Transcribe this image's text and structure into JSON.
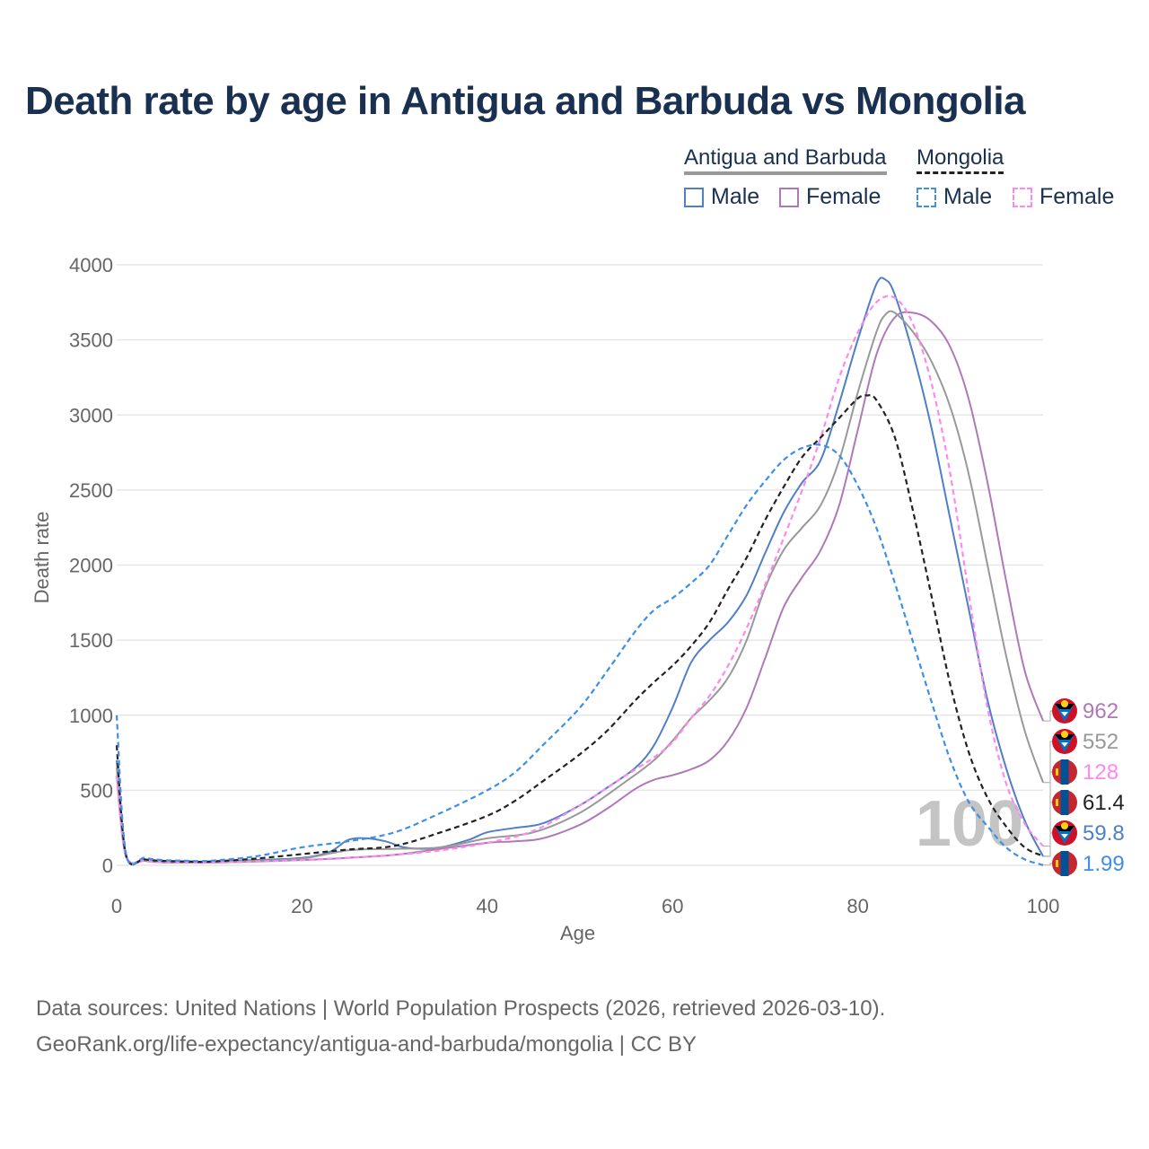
{
  "title": "Death rate by age in Antigua and Barbuda vs Mongolia",
  "legend": {
    "groups": [
      {
        "name": "Antigua and Barbuda",
        "line_style": "solid",
        "color": "#999999"
      },
      {
        "name": "Mongolia",
        "line_style": "dashed",
        "color": "#222222"
      }
    ],
    "items": [
      {
        "label": "Male",
        "color": "#4f7fc7",
        "style": "solid"
      },
      {
        "label": "Female",
        "color": "#b078b8",
        "style": "solid"
      },
      {
        "label": "Male",
        "color": "#3d8fe8",
        "style": "dashed"
      },
      {
        "label": "Female",
        "color": "#ff88ee",
        "style": "dashed"
      }
    ]
  },
  "watermark": "100",
  "footer": {
    "line1": "Data sources: United Nations | World Population Prospects (2026, retrieved 2026-03-10).",
    "line2": "GeoRank.org/life-expectancy/antigua-and-barbuda/mongolia | CC BY"
  },
  "chart_data": {
    "type": "line",
    "xlabel": "Age",
    "ylabel": "Death rate",
    "xlim": [
      0,
      100
    ],
    "ylim": [
      0,
      4000
    ],
    "xticks": [
      0,
      20,
      40,
      60,
      80,
      100
    ],
    "yticks": [
      0,
      500,
      1000,
      1500,
      2000,
      2500,
      3000,
      3500,
      4000
    ],
    "grid": true,
    "series": [
      {
        "name": "Antigua and Barbuda Male",
        "color": "#4f7fc7",
        "dash": false,
        "end_label": "59.8",
        "x": [
          0,
          1,
          3,
          5,
          8,
          10,
          15,
          20,
          23,
          25,
          27,
          29,
          31,
          33,
          35,
          38,
          40,
          43,
          46,
          50,
          53,
          56,
          58,
          60,
          62,
          64,
          66,
          68,
          70,
          72,
          74,
          76,
          78,
          80,
          82,
          83,
          84,
          86,
          88,
          90,
          92,
          94,
          96,
          98,
          100
        ],
        "y": [
          700,
          70,
          40,
          30,
          25,
          25,
          35,
          50,
          90,
          170,
          180,
          160,
          120,
          110,
          120,
          170,
          220,
          250,
          280,
          400,
          520,
          650,
          800,
          1050,
          1350,
          1500,
          1620,
          1800,
          2080,
          2350,
          2550,
          2700,
          3080,
          3500,
          3870,
          3900,
          3800,
          3400,
          2900,
          2300,
          1700,
          1100,
          650,
          300,
          60
        ]
      },
      {
        "name": "Antigua and Barbuda Female",
        "color": "#b078b8",
        "dash": false,
        "end_label": "962",
        "x": [
          0,
          1,
          3,
          5,
          8,
          10,
          15,
          20,
          25,
          30,
          35,
          40,
          43,
          46,
          50,
          53,
          56,
          58,
          60,
          62,
          64,
          66,
          68,
          70,
          72,
          74,
          76,
          78,
          80,
          82,
          84,
          86,
          88,
          90,
          92,
          94,
          96,
          98,
          100
        ],
        "y": [
          600,
          60,
          30,
          20,
          18,
          18,
          25,
          35,
          50,
          70,
          110,
          150,
          160,
          180,
          270,
          380,
          510,
          570,
          600,
          640,
          700,
          830,
          1050,
          1380,
          1720,
          1920,
          2100,
          2400,
          2900,
          3400,
          3650,
          3680,
          3620,
          3450,
          3100,
          2550,
          1900,
          1300,
          962
        ]
      },
      {
        "name": "Antigua and Barbuda (both sexes)",
        "color": "#999999",
        "dash": false,
        "end_label": "552",
        "x": [
          0,
          1,
          3,
          5,
          8,
          10,
          15,
          20,
          25,
          30,
          35,
          40,
          45,
          50,
          55,
          58,
          60,
          62,
          64,
          66,
          68,
          70,
          72,
          74,
          76,
          78,
          80,
          82,
          83,
          84,
          86,
          88,
          90,
          92,
          94,
          96,
          98,
          100
        ],
        "y": [
          650,
          65,
          35,
          25,
          22,
          22,
          30,
          45,
          100,
          110,
          120,
          180,
          220,
          350,
          560,
          700,
          830,
          980,
          1100,
          1250,
          1500,
          1850,
          2100,
          2250,
          2400,
          2700,
          3150,
          3550,
          3670,
          3680,
          3550,
          3350,
          3050,
          2600,
          2000,
          1400,
          900,
          552
        ]
      },
      {
        "name": "Mongolia Female",
        "color": "#ff88ee",
        "dash": true,
        "end_label": "128",
        "x": [
          0,
          1,
          3,
          5,
          8,
          10,
          15,
          20,
          25,
          30,
          35,
          40,
          45,
          50,
          55,
          58,
          60,
          62,
          64,
          66,
          68,
          70,
          72,
          74,
          76,
          78,
          80,
          82,
          84,
          86,
          88,
          90,
          92,
          94,
          96,
          98,
          100
        ],
        "y": [
          600,
          60,
          30,
          20,
          18,
          18,
          25,
          35,
          50,
          70,
          100,
          150,
          230,
          400,
          600,
          720,
          820,
          980,
          1130,
          1330,
          1580,
          1870,
          2180,
          2500,
          2850,
          3250,
          3550,
          3750,
          3780,
          3600,
          3200,
          2600,
          1800,
          1050,
          550,
          280,
          128
        ]
      },
      {
        "name": "Mongolia (both sexes)",
        "color": "#222222",
        "dash": true,
        "end_label": "61.4",
        "x": [
          0,
          1,
          3,
          5,
          8,
          10,
          15,
          20,
          25,
          30,
          35,
          40,
          43,
          46,
          50,
          53,
          56,
          58,
          60,
          62,
          64,
          66,
          68,
          70,
          72,
          74,
          76,
          78,
          80,
          81,
          82,
          84,
          86,
          88,
          90,
          92,
          94,
          96,
          98,
          100
        ],
        "y": [
          800,
          70,
          40,
          30,
          25,
          25,
          45,
          75,
          105,
          130,
          220,
          330,
          430,
          560,
          740,
          900,
          1100,
          1220,
          1330,
          1460,
          1620,
          1840,
          2050,
          2300,
          2520,
          2720,
          2850,
          2980,
          3110,
          3130,
          3100,
          2850,
          2350,
          1780,
          1200,
          750,
          450,
          260,
          120,
          61.4
        ]
      },
      {
        "name": "Mongolia Male",
        "color": "#3d8fe8",
        "dash": true,
        "end_label": "1.99",
        "x": [
          0,
          1,
          3,
          5,
          8,
          10,
          15,
          20,
          25,
          30,
          35,
          40,
          43,
          46,
          50,
          53,
          56,
          58,
          60,
          62,
          64,
          66,
          68,
          70,
          72,
          74,
          76,
          78,
          80,
          82,
          84,
          86,
          88,
          90,
          92,
          94,
          96,
          98,
          100
        ],
        "y": [
          1000,
          80,
          50,
          35,
          30,
          30,
          60,
          120,
          160,
          220,
          350,
          500,
          620,
          800,
          1050,
          1300,
          1560,
          1700,
          1780,
          1880,
          2000,
          2200,
          2400,
          2560,
          2700,
          2780,
          2800,
          2730,
          2530,
          2250,
          1880,
          1480,
          1080,
          700,
          420,
          260,
          120,
          40,
          1.99
        ]
      }
    ]
  }
}
